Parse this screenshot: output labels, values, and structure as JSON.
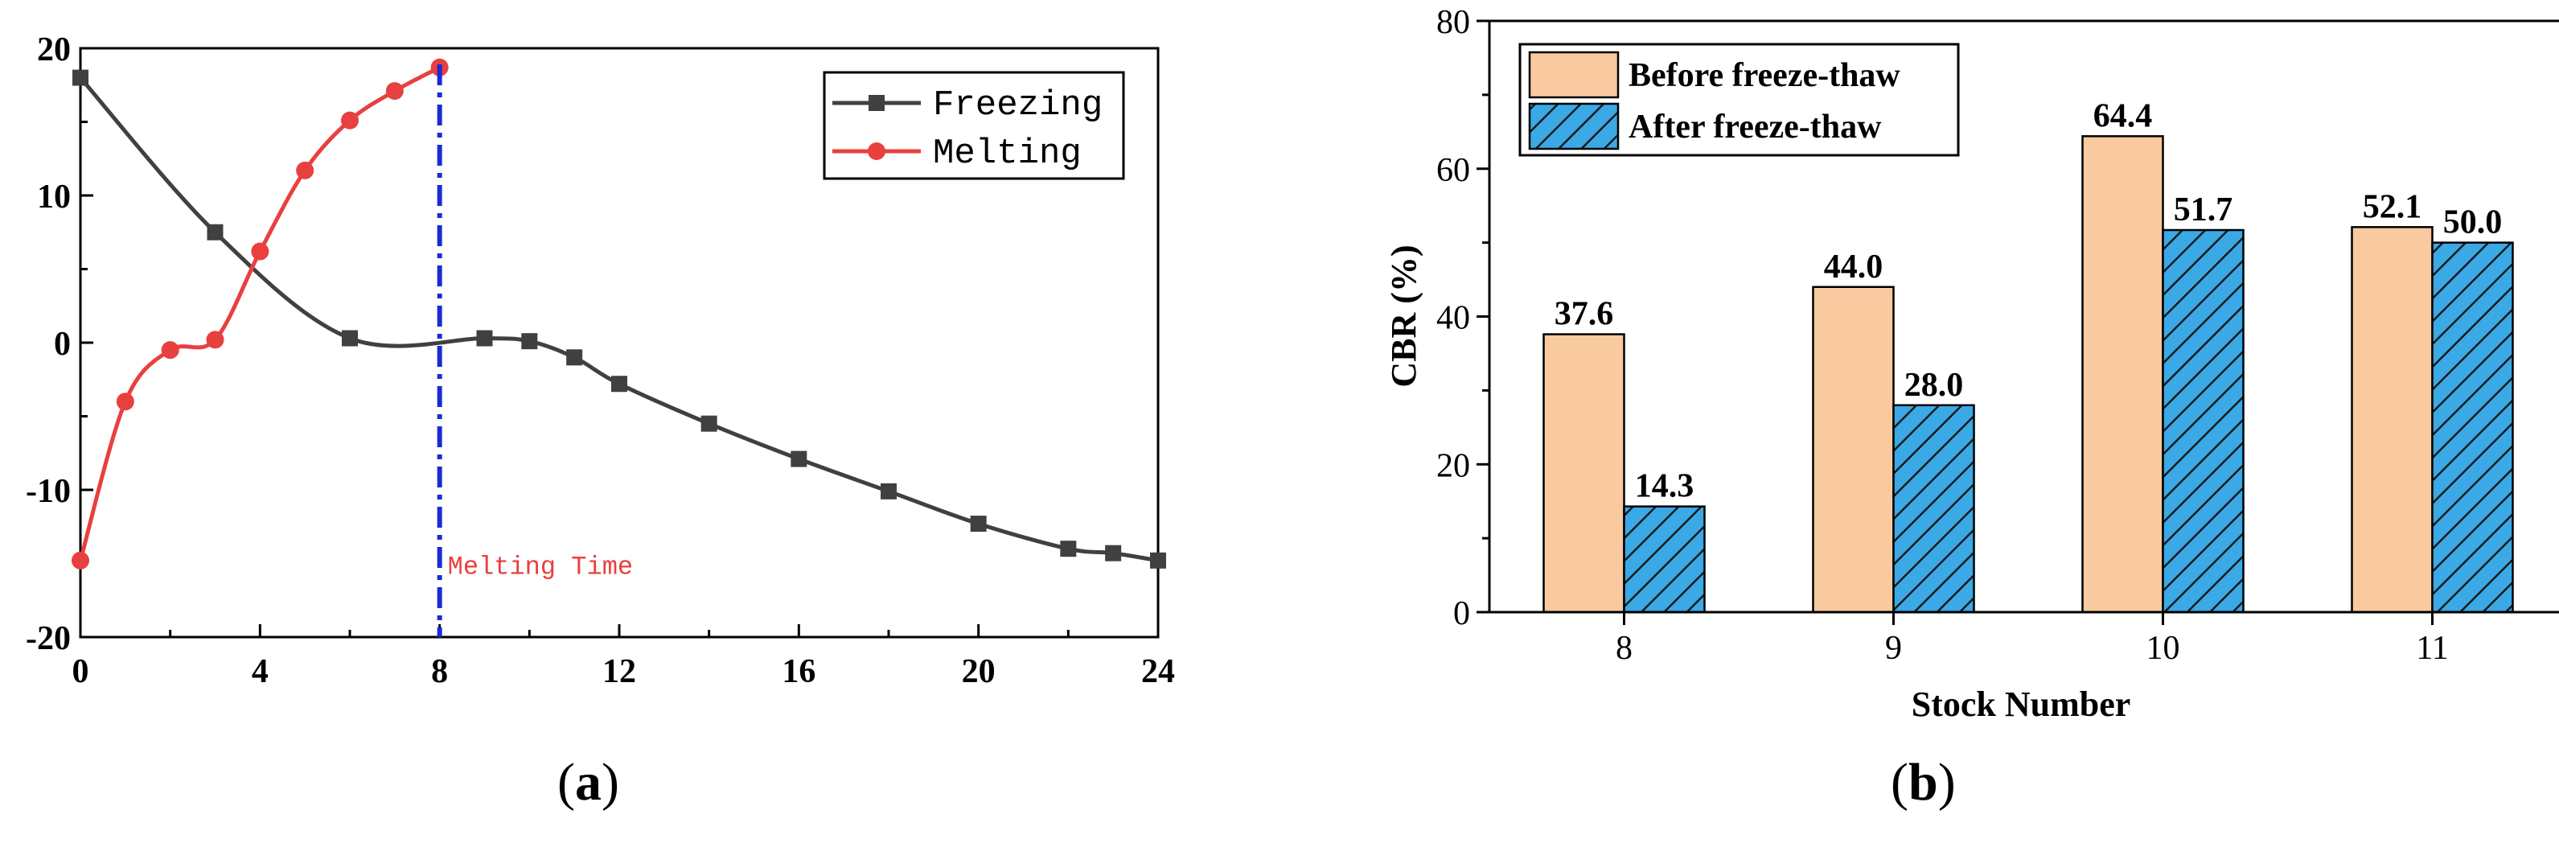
{
  "panels": [
    {
      "label": "a"
    },
    {
      "label": "b"
    }
  ],
  "chart_data": [
    {
      "type": "line",
      "title": "",
      "xlabel": "",
      "ylabel": "",
      "xlim": [
        0,
        24
      ],
      "ylim": [
        -20,
        20
      ],
      "xticks": [
        0,
        4,
        8,
        12,
        16,
        20,
        24
      ],
      "yticks": [
        -20,
        -10,
        0,
        10,
        20
      ],
      "grid": false,
      "legend": "top-right",
      "series": [
        {
          "name": "Freezing",
          "color": "#404040",
          "marker": "square",
          "x": [
            0,
            3,
            6,
            9,
            10,
            11,
            12,
            14,
            16,
            18,
            20,
            22,
            23,
            24
          ],
          "y": [
            18,
            7.5,
            0.3,
            0.3,
            0.1,
            -1.0,
            -2.8,
            -5.5,
            -7.9,
            -10.1,
            -12.3,
            -14.0,
            -14.3,
            -14.8
          ]
        },
        {
          "name": "Melting",
          "color": "#e8403f",
          "marker": "circle",
          "x": [
            0,
            1,
            2,
            3,
            4,
            5,
            6,
            7,
            8
          ],
          "y": [
            -14.8,
            -4.0,
            -0.5,
            0.2,
            6.2,
            11.7,
            15.1,
            17.1,
            18.7
          ]
        }
      ],
      "annotations": [
        {
          "type": "vline",
          "x": 8,
          "color": "#1a2bd6",
          "style": "dash-dot",
          "text": "Melting Time",
          "text_color": "#e8403f"
        }
      ]
    },
    {
      "type": "bar",
      "title": "",
      "xlabel": "Stock Number",
      "ylabel": "CBR (%)",
      "ylim": [
        0,
        80
      ],
      "yticks": [
        0,
        20,
        40,
        60,
        80
      ],
      "categories": [
        "8",
        "9",
        "10",
        "11"
      ],
      "grid": false,
      "legend": "top-left",
      "series": [
        {
          "name": "Before freeze-thaw",
          "color": "#f9c9a0",
          "pattern": "solid",
          "values": [
            37.6,
            44.0,
            64.4,
            52.1
          ],
          "labels": [
            "37.6",
            "44.0",
            "64.4",
            "52.1"
          ]
        },
        {
          "name": "After freeze-thaw",
          "color": "#3aa9e6",
          "pattern": "hatch",
          "values": [
            14.3,
            28.0,
            51.7,
            50.0
          ],
          "labels": [
            "14.3",
            "28.0",
            "51.7",
            "50.0"
          ]
        }
      ]
    }
  ]
}
